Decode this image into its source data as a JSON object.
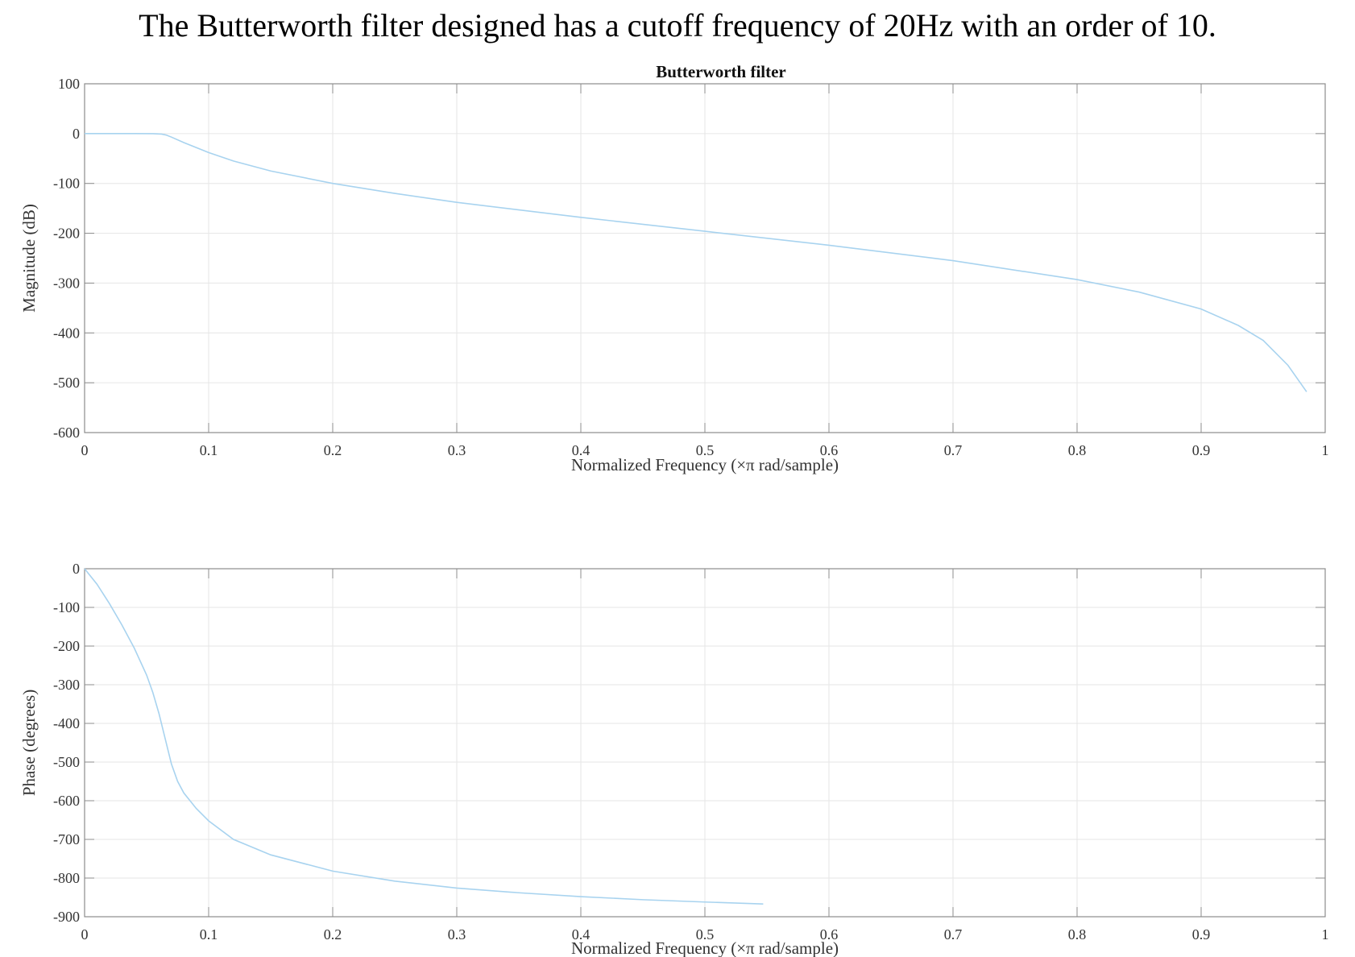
{
  "caption": "The Butterworth filter designed has a cutoff frequency of 20Hz with an order of 10.",
  "chart_data": [
    {
      "type": "line",
      "title": "Butterworth filter",
      "xlabel": "Normalized Frequency  (×π rad/sample)",
      "ylabel": "Magnitude (dB)",
      "xlim": [
        0,
        1
      ],
      "ylim": [
        -600,
        100
      ],
      "xticks": [
        0,
        0.1,
        0.2,
        0.3,
        0.4,
        0.5,
        0.6,
        0.7,
        0.8,
        0.9,
        1
      ],
      "xtick_labels": [
        "0",
        "0.1",
        "0.2",
        "0.3",
        "0.4",
        "0.5",
        "0.6",
        "0.7",
        "0.8",
        "0.9",
        "1"
      ],
      "yticks": [
        100,
        0,
        -100,
        -200,
        -300,
        -400,
        -500,
        -600
      ],
      "ytick_labels": [
        "100",
        "0",
        "-100",
        "-200",
        "-300",
        "-400",
        "-500",
        "-600"
      ],
      "grid": true,
      "color": "#a8d3ef",
      "series": [
        {
          "x": [
            0,
            0.02,
            0.04,
            0.055,
            0.062,
            0.066,
            0.07,
            0.08,
            0.1,
            0.12,
            0.15,
            0.2,
            0.25,
            0.3,
            0.4,
            0.5,
            0.6,
            0.7,
            0.8,
            0.85,
            0.9,
            0.93,
            0.95,
            0.97,
            0.985
          ],
          "y": [
            0,
            0,
            0,
            -0.2,
            -1,
            -3,
            -7,
            -18,
            -38,
            -55,
            -75,
            -100,
            -120,
            -138,
            -168,
            -196,
            -224,
            -255,
            -293,
            -318,
            -352,
            -385,
            -415,
            -465,
            -518
          ]
        }
      ]
    },
    {
      "type": "line",
      "title": "",
      "xlabel": "Normalized Frequency  (×π rad/sample)",
      "ylabel": "Phase (degrees)",
      "xlim": [
        0,
        1
      ],
      "ylim": [
        -900,
        0
      ],
      "xticks": [
        0,
        0.1,
        0.2,
        0.3,
        0.4,
        0.5,
        0.6,
        0.7,
        0.8,
        0.9,
        1
      ],
      "xtick_labels": [
        "0",
        "0.1",
        "0.2",
        "0.3",
        "0.4",
        "0.5",
        "0.6",
        "0.7",
        "0.8",
        "0.9",
        "1"
      ],
      "yticks": [
        0,
        -100,
        -200,
        -300,
        -400,
        -500,
        -600,
        -700,
        -800,
        -900
      ],
      "ytick_labels": [
        "0",
        "-100",
        "-200",
        "-300",
        "-400",
        "-500",
        "-600",
        "-700",
        "-800",
        "-900"
      ],
      "grid": true,
      "color": "#a8d3ef",
      "series": [
        {
          "x": [
            0,
            0.01,
            0.02,
            0.03,
            0.04,
            0.05,
            0.055,
            0.06,
            0.065,
            0.07,
            0.075,
            0.08,
            0.09,
            0.1,
            0.12,
            0.15,
            0.2,
            0.25,
            0.3,
            0.35,
            0.4,
            0.45,
            0.5,
            0.547
          ],
          "y": [
            0,
            -40,
            -90,
            -145,
            -205,
            -275,
            -320,
            -375,
            -440,
            -505,
            -550,
            -580,
            -620,
            -652,
            -700,
            -740,
            -782,
            -808,
            -826,
            -838,
            -848,
            -856,
            -862,
            -867
          ]
        }
      ]
    }
  ]
}
